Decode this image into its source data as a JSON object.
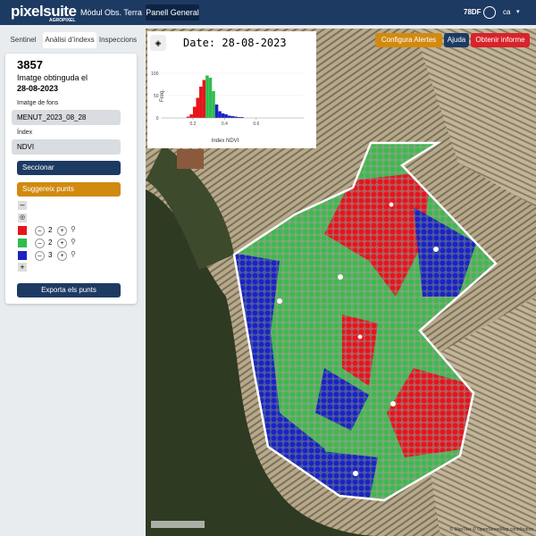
{
  "header": {
    "logo": "pixelsuite",
    "logo_sub": "AGROPIXEL",
    "nav": [
      "Mòdul Obs. Terra",
      "Panell General"
    ],
    "user": "78DF",
    "lang": "ca"
  },
  "sidebar": {
    "tabs": [
      "Sentinel",
      "Anàlisi d'índexs",
      "Inspeccions"
    ],
    "id": "3857",
    "obtained_label": "Imatge obtinguda el",
    "obtained_date": "28-08-2023",
    "background_label": "Imatge de fons",
    "background_value": "MENUT_2023_08_28",
    "index_label": "Índex",
    "index_value": "NDVI",
    "section_button": "Seccionar",
    "suggest_button": "Suggereix punts",
    "rows": [
      {
        "color": "#e8141c",
        "count": 2
      },
      {
        "color": "#2ebd4e",
        "count": 2
      },
      {
        "color": "#1c22c4",
        "count": 3
      }
    ],
    "export_button": "Exporta els punts"
  },
  "map": {
    "buttons": [
      "Configura Alertes",
      "Ajuda",
      "Obtenir informe"
    ],
    "attribution": "© MapTiler © OpenStreetMap contributors"
  },
  "chart_data": {
    "type": "histogram",
    "title": "Date: 28-08-2023",
    "xlabel": "Index NDVI",
    "ylabel": "Freq.",
    "bins": [
      0.16,
      0.18,
      0.2,
      0.22,
      0.24,
      0.26,
      0.28,
      0.3,
      0.32,
      0.34,
      0.36,
      0.38,
      0.4,
      0.42,
      0.44,
      0.46,
      0.48,
      0.5,
      0.52
    ],
    "counts": [
      3,
      8,
      25,
      45,
      70,
      85,
      95,
      90,
      60,
      30,
      15,
      10,
      8,
      5,
      4,
      3,
      2,
      2
    ],
    "colors": [
      "#e8141c",
      "#e8141c",
      "#e8141c",
      "#e8141c",
      "#e8141c",
      "#e8141c",
      "#2ebd4e",
      "#2ebd4e",
      "#2ebd4e",
      "#1c22c4",
      "#1c22c4",
      "#1c22c4",
      "#1c22c4",
      "#1c22c4",
      "#1c22c4",
      "#1c22c4",
      "#1c22c4",
      "#1c22c4"
    ],
    "xlim": [
      0,
      0.9
    ],
    "ylim": [
      0,
      110
    ],
    "xticks": [
      0.2,
      0.4,
      0.6
    ],
    "yticks": [
      0,
      50,
      100
    ]
  }
}
